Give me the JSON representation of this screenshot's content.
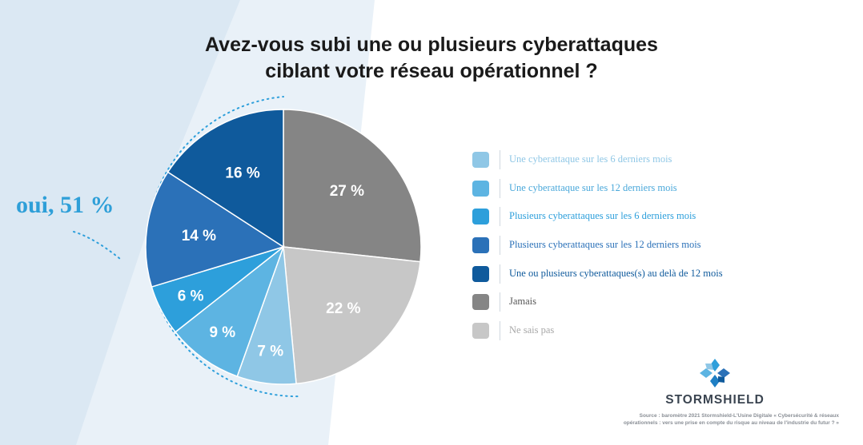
{
  "title_line1": "Avez-vous subi une ou plusieurs cyberattaques",
  "title_line2": "ciblant votre réseau opérationnel ?",
  "callout": "oui, 51 %",
  "chart_data": {
    "type": "pie",
    "title": "Avez-vous subi une ou plusieurs cyberattaques ciblant votre réseau opérationnel ?",
    "slices": [
      {
        "label": "Jamais",
        "value": 27,
        "display": "27 %",
        "color": "#858585",
        "text_color": "#ffffff"
      },
      {
        "label": "Ne sais pas",
        "value": 22,
        "display": "22 %",
        "color": "#c7c7c7",
        "text_color": "#ffffff"
      },
      {
        "label": "Une cyberattaque sur les 6 derniers mois",
        "value": 7,
        "display": "7 %",
        "color": "#8fc7e6",
        "text_color": "#ffffff"
      },
      {
        "label": "Une cyberattaque sur les 12 derniers mois",
        "value": 9,
        "display": "9 %",
        "color": "#5db4e2",
        "text_color": "#ffffff"
      },
      {
        "label": "Plusieurs cyberattaques sur les 6 derniers mois",
        "value": 6,
        "display": "6 %",
        "color": "#2d9fdb",
        "text_color": "#ffffff"
      },
      {
        "label": "Plusieurs cyberattaques sur les 12 derniers mois",
        "value": 14,
        "display": "14 %",
        "color": "#2b71b8",
        "text_color": "#ffffff"
      },
      {
        "label": "Une ou plusieurs cyberattaques(s) au delà de 12 mois",
        "value": 16,
        "display": "16 %",
        "color": "#0f5a9c",
        "text_color": "#ffffff"
      }
    ],
    "legend": [
      {
        "label": "Une cyberattaque sur les 6 derniers mois",
        "color": "#8fc7e6",
        "text_color": "#8fc7e6"
      },
      {
        "label": "Une cyberattaque sur les 12 derniers mois",
        "color": "#5db4e2",
        "text_color": "#4aa8da"
      },
      {
        "label": "Plusieurs cyberattaques sur les 6 derniers mois",
        "color": "#2d9fdb",
        "text_color": "#2d9fdb"
      },
      {
        "label": "Plusieurs cyberattaques sur les 12 derniers mois",
        "color": "#2b71b8",
        "text_color": "#2b71b8"
      },
      {
        "label": "Une ou plusieurs cyberattaques(s) au delà de 12 mois",
        "color": "#0f5a9c",
        "text_color": "#0f5a9c"
      },
      {
        "label": "Jamais",
        "color": "#858585",
        "text_color": "#555555"
      },
      {
        "label": "Ne sais pas",
        "color": "#c7c7c7",
        "text_color": "#a8a8a8"
      }
    ],
    "legend_position": "right",
    "start_angle_deg": 0,
    "direction": "clockwise"
  },
  "brand": "STORMSHIELD",
  "source_line1": "Source : baromètre 2021 Stormshield-L'Usine Digitale « Cybersécurité & réseaux",
  "source_line2": "opérationnels : vers une prise en compte du risque au niveau de l'industrie du futur ? »",
  "icons": {
    "logo": "stormshield-logo-icon"
  }
}
